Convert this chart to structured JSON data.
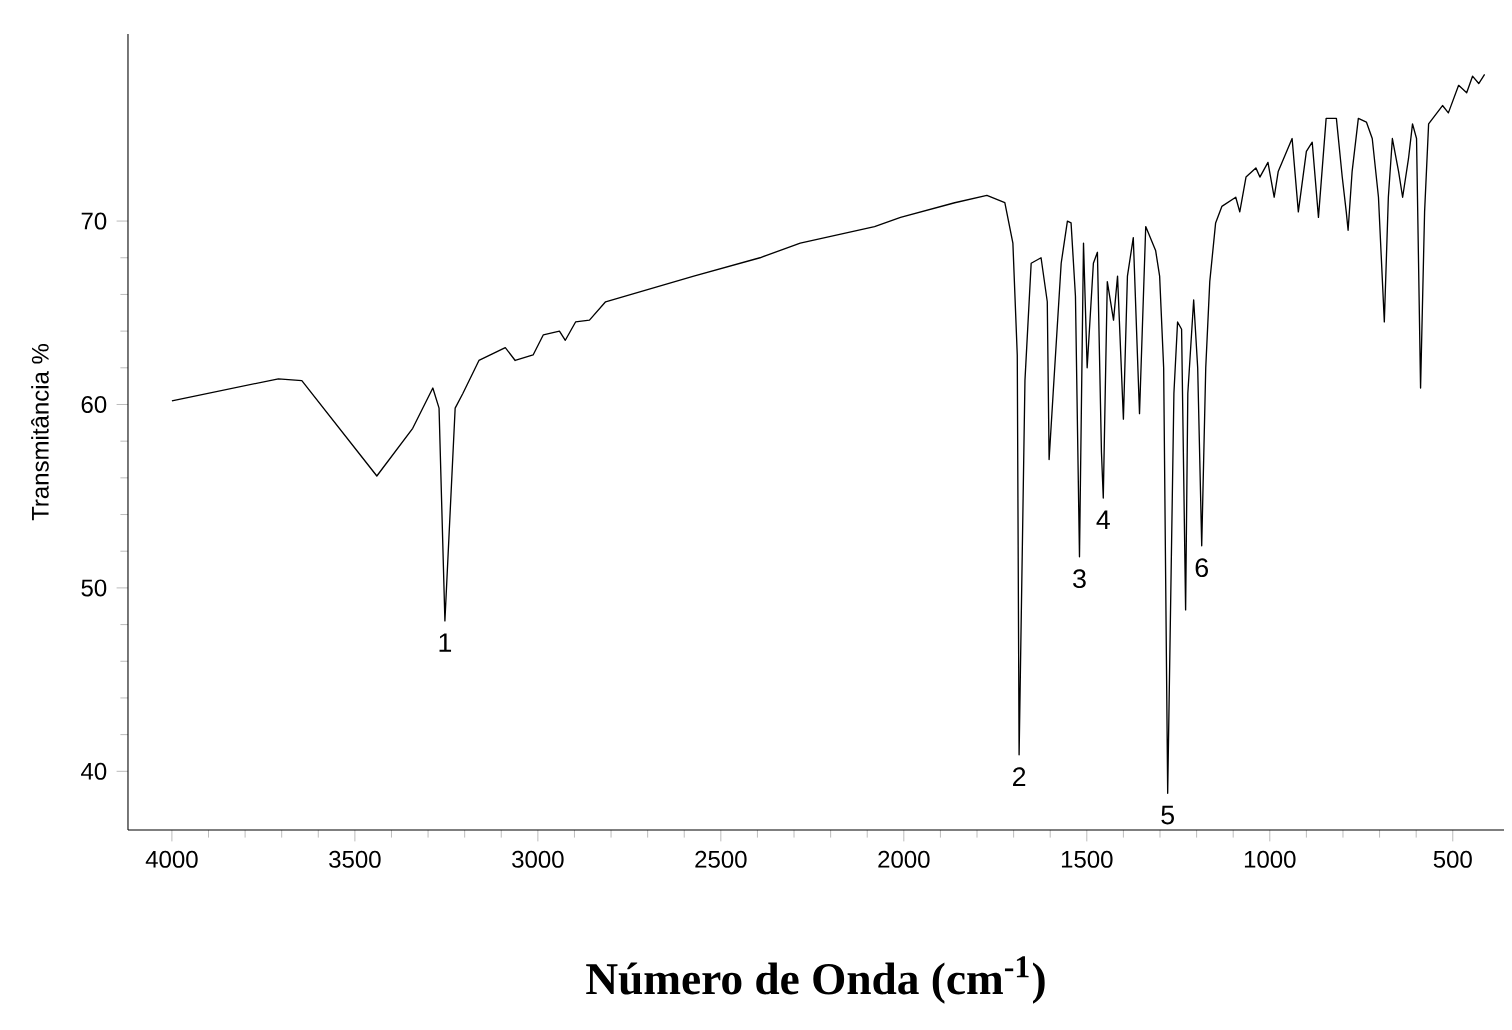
{
  "chart_data": {
    "type": "line",
    "xlabel": "Número de Onda (cm$^{-1}$)",
    "ylabel": "Transmitância %",
    "xlim": [
      4120,
      360
    ],
    "ylim": [
      36.8,
      80.2
    ],
    "xticks": [
      4000,
      3500,
      3000,
      2500,
      2000,
      1500,
      1000,
      500
    ],
    "yticks": [
      40,
      50,
      60,
      70
    ],
    "series": [
      {
        "color": "#000000",
        "x": [
          4000,
          3709,
          3645,
          3440,
          3342,
          3287,
          3270,
          3254,
          3226,
          3205,
          3161,
          3089,
          3062,
          3013,
          2985,
          2941,
          2925,
          2897,
          2859,
          2815,
          2574,
          2393,
          2283,
          2080,
          2009,
          1861,
          1773,
          1724,
          1702,
          1690,
          1685,
          1669,
          1652,
          1625,
          1608,
          1603,
          1592,
          1570,
          1553,
          1543,
          1531,
          1520,
          1509,
          1499,
          1482,
          1471,
          1460,
          1455,
          1444,
          1427,
          1416,
          1400,
          1389,
          1373,
          1356,
          1339,
          1312,
          1301,
          1290,
          1279,
          1262,
          1252,
          1241,
          1230,
          1224,
          1208,
          1197,
          1186,
          1175,
          1164,
          1148,
          1131,
          1093,
          1082,
          1065,
          1038,
          1027,
          1005,
          988,
          977,
          939,
          922,
          900,
          884,
          867,
          846,
          818,
          802,
          791,
          786,
          775,
          758,
          736,
          720,
          703,
          687,
          676,
          665,
          648,
          637,
          621,
          610,
          599,
          588,
          577,
          566,
          528,
          512,
          484,
          462,
          446,
          429,
          413
        ],
        "values": [
          60.2,
          61.4,
          61.3,
          56.1,
          58.7,
          60.9,
          59.8,
          48.2,
          59.8,
          60.6,
          62.4,
          63.1,
          62.4,
          62.7,
          63.8,
          64.0,
          63.5,
          64.5,
          64.6,
          65.6,
          67.0,
          68.0,
          68.8,
          69.7,
          70.2,
          71.0,
          71.4,
          71.0,
          68.8,
          62.7,
          40.9,
          61.3,
          67.7,
          68.0,
          65.6,
          57.0,
          60.6,
          67.7,
          70.0,
          69.9,
          65.9,
          51.7,
          68.8,
          62.0,
          67.7,
          68.3,
          57.4,
          54.9,
          66.7,
          64.6,
          67.0,
          59.2,
          67.0,
          69.1,
          59.5,
          69.7,
          68.4,
          67.0,
          62.0,
          38.8,
          60.6,
          64.5,
          64.1,
          48.8,
          60.6,
          65.7,
          62.0,
          52.3,
          62.0,
          66.7,
          69.9,
          70.8,
          71.3,
          70.5,
          72.4,
          72.9,
          72.4,
          73.2,
          71.3,
          72.7,
          74.5,
          70.5,
          73.8,
          74.3,
          70.2,
          75.6,
          75.6,
          72.4,
          70.5,
          69.5,
          72.7,
          75.6,
          75.4,
          74.5,
          71.3,
          64.5,
          71.3,
          74.5,
          72.7,
          71.3,
          73.4,
          75.3,
          74.5,
          60.9,
          70.5,
          75.3,
          76.3,
          75.9,
          77.4,
          77.0,
          77.9,
          77.5,
          78.0
        ]
      }
    ],
    "annotations": [
      {
        "text": "1",
        "x": 3254,
        "y": 48.2
      },
      {
        "text": "2",
        "x": 1685,
        "y": 40.9
      },
      {
        "text": "3",
        "x": 1520,
        "y": 51.7
      },
      {
        "text": "4",
        "x": 1455,
        "y": 54.9
      },
      {
        "text": "5",
        "x": 1279,
        "y": 38.8
      },
      {
        "text": "6",
        "x": 1186,
        "y": 52.3
      }
    ]
  }
}
